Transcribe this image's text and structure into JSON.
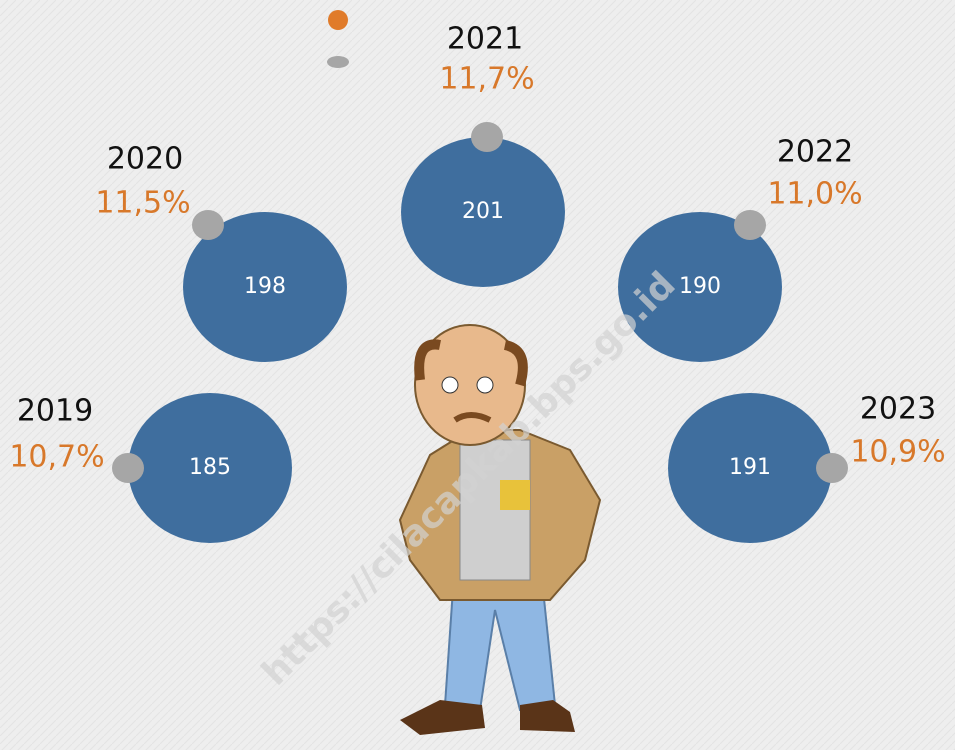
{
  "items": [
    {
      "year": "2019",
      "percent": "10,7%",
      "value": "185"
    },
    {
      "year": "2020",
      "percent": "11,5%",
      "value": "198"
    },
    {
      "year": "2021",
      "percent": "11,7%",
      "value": "201"
    },
    {
      "year": "2022",
      "percent": "11,0%",
      "value": "190"
    },
    {
      "year": "2023",
      "percent": "10,9%",
      "value": "191"
    }
  ],
  "watermark": "https://cilacapkab.bps.go.id"
}
